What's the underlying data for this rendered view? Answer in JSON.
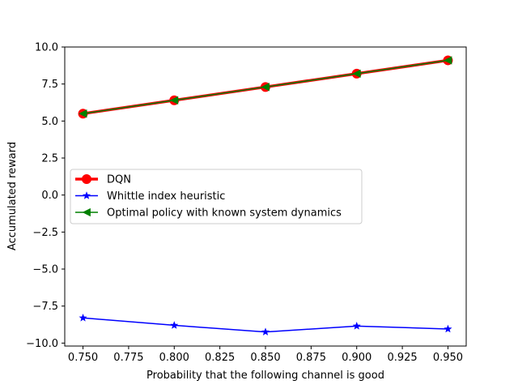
{
  "chart_data": {
    "type": "line",
    "title": "",
    "xlabel": "Probability that the following channel is good",
    "ylabel": "Accumulated reward",
    "xlim": [
      0.74,
      0.96
    ],
    "ylim": [
      -10.2,
      10.0
    ],
    "xticks": [
      "0.750",
      "0.775",
      "0.800",
      "0.825",
      "0.850",
      "0.875",
      "0.900",
      "0.925",
      "0.950"
    ],
    "yticks": [
      "10.0",
      "7.5",
      "5.0",
      "2.5",
      "0.0",
      "−2.5",
      "−5.0",
      "−7.5",
      "−10.0"
    ],
    "xtick_values": [
      0.75,
      0.775,
      0.8,
      0.825,
      0.85,
      0.875,
      0.9,
      0.925,
      0.95
    ],
    "ytick_values": [
      10.0,
      7.5,
      5.0,
      2.5,
      0.0,
      -2.5,
      -5.0,
      -7.5,
      -10.0
    ],
    "grid": false,
    "legend_position": "center-left",
    "x": [
      0.75,
      0.8,
      0.85,
      0.9,
      0.95
    ],
    "series": [
      {
        "name": "DQN",
        "values": [
          5.5,
          6.4,
          7.3,
          8.2,
          9.1
        ],
        "color": "#ff0000",
        "marker": "circle"
      },
      {
        "name": "Whittle index heuristic",
        "values": [
          -8.3,
          -8.8,
          -9.25,
          -8.85,
          -9.05
        ],
        "color": "#0000ff",
        "marker": "star"
      },
      {
        "name": "Optimal policy with known system dynamics",
        "values": [
          5.5,
          6.4,
          7.3,
          8.2,
          9.1
        ],
        "color": "#008000",
        "marker": "triangle-left"
      }
    ]
  }
}
